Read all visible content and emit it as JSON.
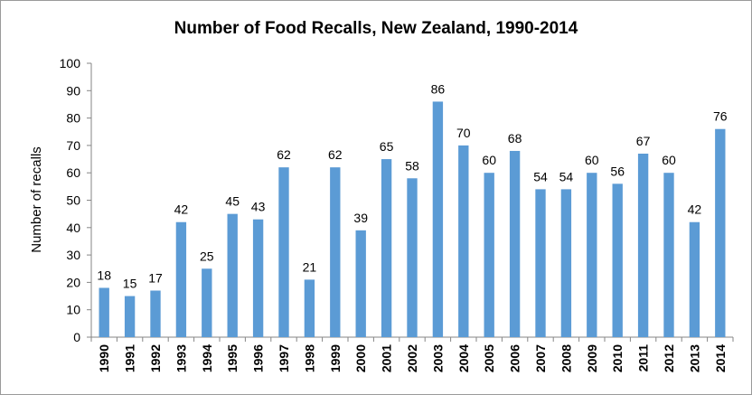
{
  "chart_data": {
    "type": "bar",
    "title": "Number of Food Recalls, New Zealand, 1990-2014",
    "xlabel": "",
    "ylabel": "Number of recalls",
    "ylim": [
      0,
      100
    ],
    "yticks": [
      0,
      10,
      20,
      30,
      40,
      50,
      60,
      70,
      80,
      90,
      100
    ],
    "grid": false,
    "legend": "none",
    "bar_color": "#5B9BD5",
    "data_labels": true,
    "categories": [
      "1990",
      "1991",
      "1992",
      "1993",
      "1994",
      "1995",
      "1996",
      "1997",
      "1998",
      "1999",
      "2000",
      "2001",
      "2002",
      "2003",
      "2004",
      "2005",
      "2006",
      "2007",
      "2008",
      "2009",
      "2010",
      "2011",
      "2012",
      "2013",
      "2014"
    ],
    "values": [
      18,
      15,
      17,
      42,
      25,
      45,
      43,
      62,
      21,
      62,
      39,
      65,
      58,
      86,
      70,
      60,
      68,
      54,
      54,
      60,
      56,
      67,
      60,
      42,
      76
    ]
  }
}
